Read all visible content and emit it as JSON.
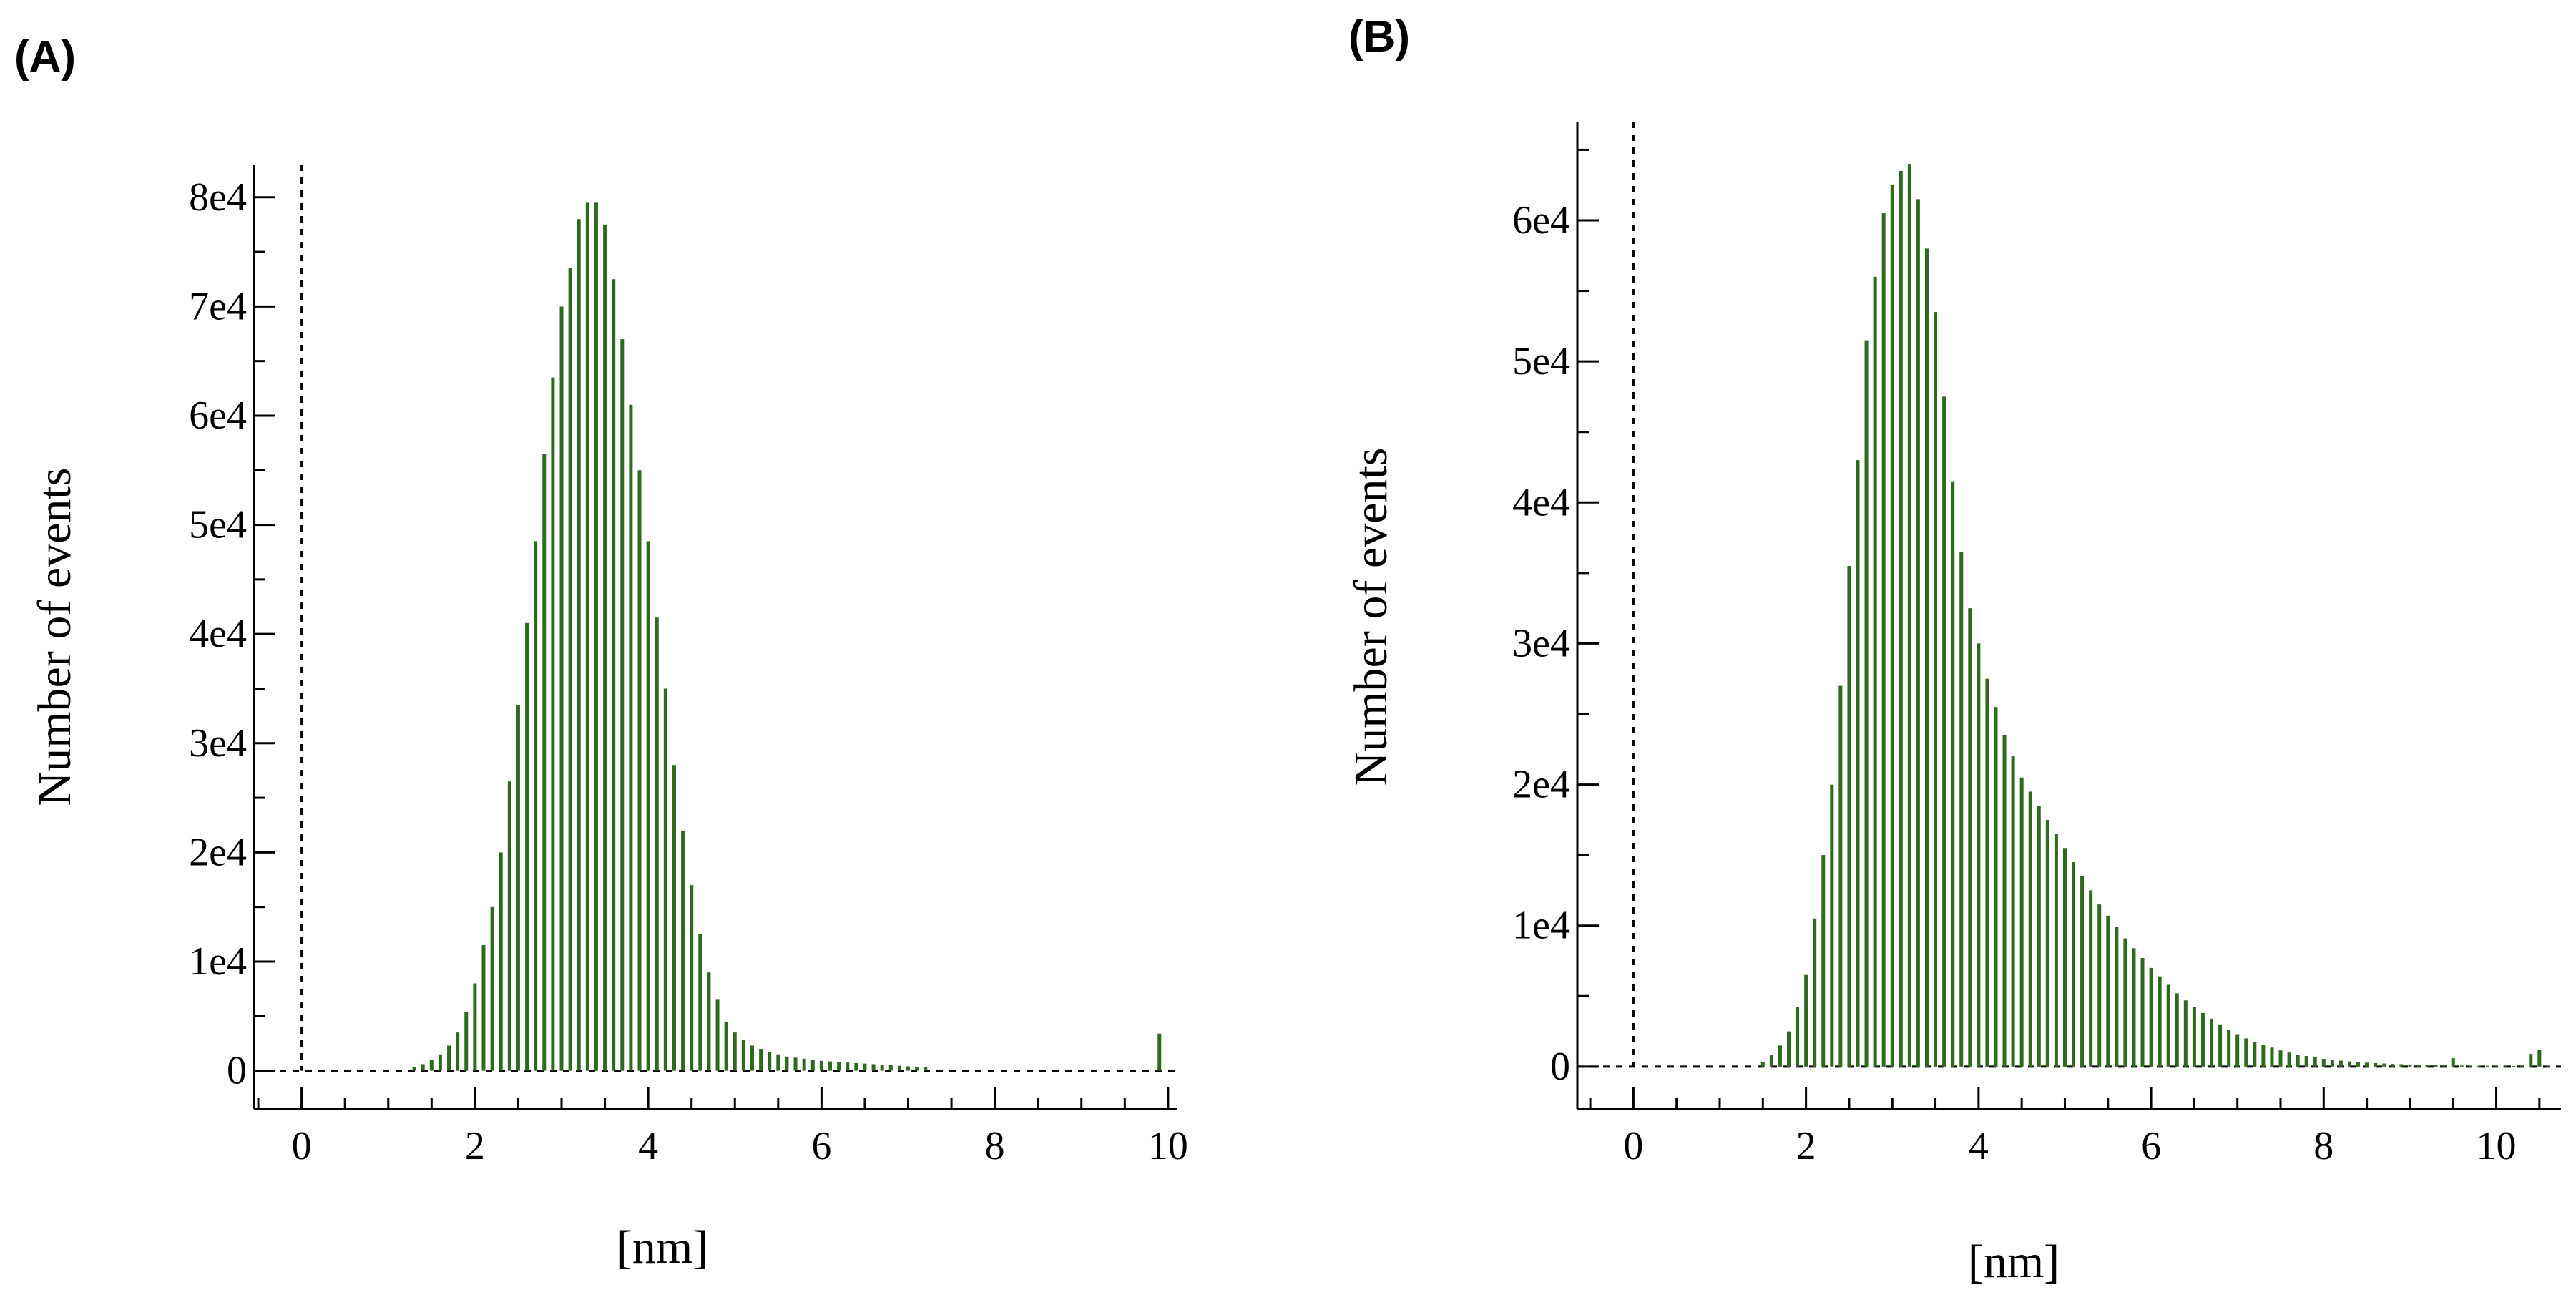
{
  "chart_data": [
    {
      "panel_label": "(A)",
      "type": "bar",
      "ylabel": "Number of events",
      "xlabel": "[nm]",
      "xlim": [
        -0.55,
        10.1
      ],
      "ylim": [
        -3500,
        83000
      ],
      "xticks": [
        0,
        2,
        4,
        6,
        8,
        10
      ],
      "xtick_labels": [
        "0",
        "2",
        "4",
        "6",
        "8",
        "10"
      ],
      "yticks": [
        0,
        10000,
        20000,
        30000,
        40000,
        50000,
        60000,
        70000,
        80000
      ],
      "ytick_labels": [
        "0",
        "1e4",
        "2e4",
        "3e4",
        "4e4",
        "5e4",
        "6e4",
        "7e4",
        "8e4"
      ],
      "bar_color": "#2d6a1e",
      "x": [
        1.3,
        1.4,
        1.5,
        1.6,
        1.7,
        1.8,
        1.9,
        2.0,
        2.1,
        2.2,
        2.3,
        2.4,
        2.5,
        2.6,
        2.7,
        2.8,
        2.9,
        3.0,
        3.1,
        3.2,
        3.3,
        3.4,
        3.5,
        3.6,
        3.7,
        3.8,
        3.9,
        4.0,
        4.1,
        4.2,
        4.3,
        4.4,
        4.5,
        4.6,
        4.7,
        4.8,
        4.9,
        5.0,
        5.1,
        5.2,
        5.3,
        5.4,
        5.5,
        5.6,
        5.7,
        5.8,
        5.9,
        6.0,
        6.1,
        6.2,
        6.3,
        6.4,
        6.5,
        6.6,
        6.7,
        6.8,
        6.9,
        7.0,
        7.1,
        7.2,
        9.9
      ],
      "values": [
        300,
        600,
        1000,
        1500,
        2300,
        3500,
        5400,
        8000,
        11500,
        15000,
        20000,
        26500,
        33500,
        41000,
        48500,
        56500,
        63500,
        70000,
        73500,
        78000,
        79500,
        79500,
        77500,
        72500,
        67000,
        61000,
        55000,
        48500,
        41500,
        35000,
        28000,
        22000,
        17000,
        12500,
        9000,
        6500,
        4500,
        3500,
        2800,
        2300,
        2000,
        1700,
        1500,
        1300,
        1200,
        1100,
        1000,
        900,
        850,
        800,
        750,
        700,
        650,
        600,
        550,
        500,
        450,
        400,
        350,
        300,
        3400
      ]
    },
    {
      "panel_label": "(B)",
      "type": "bar",
      "ylabel": "Number of events",
      "xlabel": "[nm]",
      "xlim": [
        -0.65,
        10.75
      ],
      "ylim": [
        -3000,
        67000
      ],
      "xticks": [
        0,
        2,
        4,
        6,
        8,
        10
      ],
      "xtick_labels": [
        "0",
        "2",
        "4",
        "6",
        "8",
        "10"
      ],
      "yticks": [
        0,
        10000,
        20000,
        30000,
        40000,
        50000,
        60000
      ],
      "ytick_labels": [
        "0",
        "1e4",
        "2e4",
        "3e4",
        "4e4",
        "5e4",
        "6e4"
      ],
      "bar_color": "#2d6a1e",
      "x": [
        1.5,
        1.6,
        1.7,
        1.8,
        1.9,
        2.0,
        2.1,
        2.2,
        2.3,
        2.4,
        2.5,
        2.6,
        2.7,
        2.8,
        2.9,
        3.0,
        3.1,
        3.2,
        3.3,
        3.4,
        3.5,
        3.6,
        3.7,
        3.8,
        3.9,
        4.0,
        4.1,
        4.2,
        4.3,
        4.4,
        4.5,
        4.6,
        4.7,
        4.8,
        4.9,
        5.0,
        5.1,
        5.2,
        5.3,
        5.4,
        5.5,
        5.6,
        5.7,
        5.8,
        5.9,
        6.0,
        6.1,
        6.2,
        6.3,
        6.4,
        6.5,
        6.6,
        6.7,
        6.8,
        6.9,
        7.0,
        7.1,
        7.2,
        7.3,
        7.4,
        7.5,
        7.6,
        7.7,
        7.8,
        7.9,
        8.0,
        8.1,
        8.2,
        8.3,
        8.4,
        8.5,
        8.6,
        8.7,
        8.8,
        8.9,
        9.0,
        9.1,
        9.2,
        9.3,
        9.4,
        9.5,
        9.6,
        9.7,
        9.8,
        9.9,
        10.0,
        10.1,
        10.2,
        10.3,
        10.4,
        10.5,
        10.6
      ],
      "values": [
        300,
        800,
        1500,
        2500,
        4200,
        6500,
        10500,
        15000,
        20000,
        27000,
        35500,
        43000,
        51500,
        56000,
        60500,
        62500,
        63500,
        64000,
        61500,
        58000,
        53500,
        47500,
        41500,
        36500,
        32500,
        30000,
        27500,
        25500,
        23500,
        22000,
        20500,
        19500,
        18500,
        17500,
        16500,
        15500,
        14500,
        13500,
        12500,
        11500,
        10700,
        9900,
        9100,
        8400,
        7700,
        7000,
        6400,
        5800,
        5200,
        4700,
        4200,
        3800,
        3400,
        3000,
        2600,
        2300,
        2000,
        1750,
        1550,
        1350,
        1150,
        1000,
        850,
        750,
        650,
        550,
        480,
        420,
        370,
        320,
        280,
        250,
        220,
        190,
        170,
        150,
        130,
        120,
        110,
        100,
        600,
        80,
        70,
        60,
        60,
        50,
        50,
        50,
        50,
        900,
        1200,
        60
      ]
    }
  ]
}
